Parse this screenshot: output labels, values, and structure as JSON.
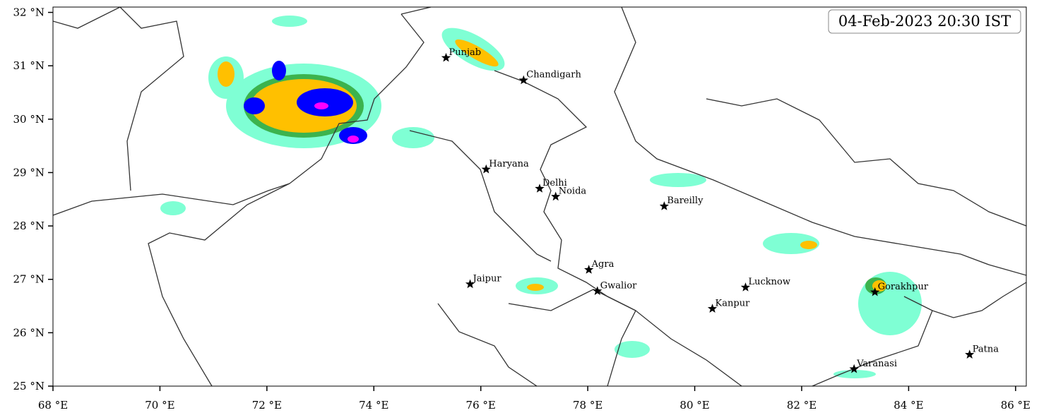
{
  "map": {
    "timestamp": "04-Feb-2023 20:30 IST",
    "xlim": [
      68,
      86.2
    ],
    "ylim": [
      25,
      32.1
    ],
    "xticks": [
      {
        "value": 68,
        "label": "68 °E"
      },
      {
        "value": 70,
        "label": "70 °E"
      },
      {
        "value": 72,
        "label": "72 °E"
      },
      {
        "value": 74,
        "label": "74 °E"
      },
      {
        "value": 76,
        "label": "76 °E"
      },
      {
        "value": 78,
        "label": "78 °E"
      },
      {
        "value": 80,
        "label": "80 °E"
      },
      {
        "value": 82,
        "label": "82 °E"
      },
      {
        "value": 84,
        "label": "84 °E"
      },
      {
        "value": 86,
        "label": "86 °E"
      }
    ],
    "yticks": [
      {
        "value": 25,
        "label": "25 °N"
      },
      {
        "value": 26,
        "label": "26 °N"
      },
      {
        "value": 27,
        "label": "27 °N"
      },
      {
        "value": 28,
        "label": "28 °N"
      },
      {
        "value": 29,
        "label": "29 °N"
      },
      {
        "value": 30,
        "label": "30 °N"
      },
      {
        "value": 31,
        "label": "31 °N"
      },
      {
        "value": 32,
        "label": "32 °N"
      }
    ],
    "cities": [
      {
        "name": "Punjab",
        "lon": 75.35,
        "lat": 31.15
      },
      {
        "name": "Chandigarh",
        "lon": 76.8,
        "lat": 30.73
      },
      {
        "name": "Haryana",
        "lon": 76.1,
        "lat": 29.06
      },
      {
        "name": "Delhi",
        "lon": 77.1,
        "lat": 28.7
      },
      {
        "name": "Noida",
        "lon": 77.4,
        "lat": 28.55
      },
      {
        "name": "Bareilly",
        "lon": 79.43,
        "lat": 28.37
      },
      {
        "name": "Agra",
        "lon": 78.02,
        "lat": 27.18
      },
      {
        "name": "Jaipur",
        "lon": 75.8,
        "lat": 26.91
      },
      {
        "name": "Gwalior",
        "lon": 78.18,
        "lat": 26.78
      },
      {
        "name": "Lucknow",
        "lon": 80.95,
        "lat": 26.85
      },
      {
        "name": "Kanpur",
        "lon": 80.33,
        "lat": 26.45
      },
      {
        "name": "Gorakhpur",
        "lon": 83.37,
        "lat": 26.76
      },
      {
        "name": "Varanasi",
        "lon": 82.98,
        "lat": 25.32
      },
      {
        "name": "Patna",
        "lon": 85.14,
        "lat": 25.59
      }
    ]
  }
}
